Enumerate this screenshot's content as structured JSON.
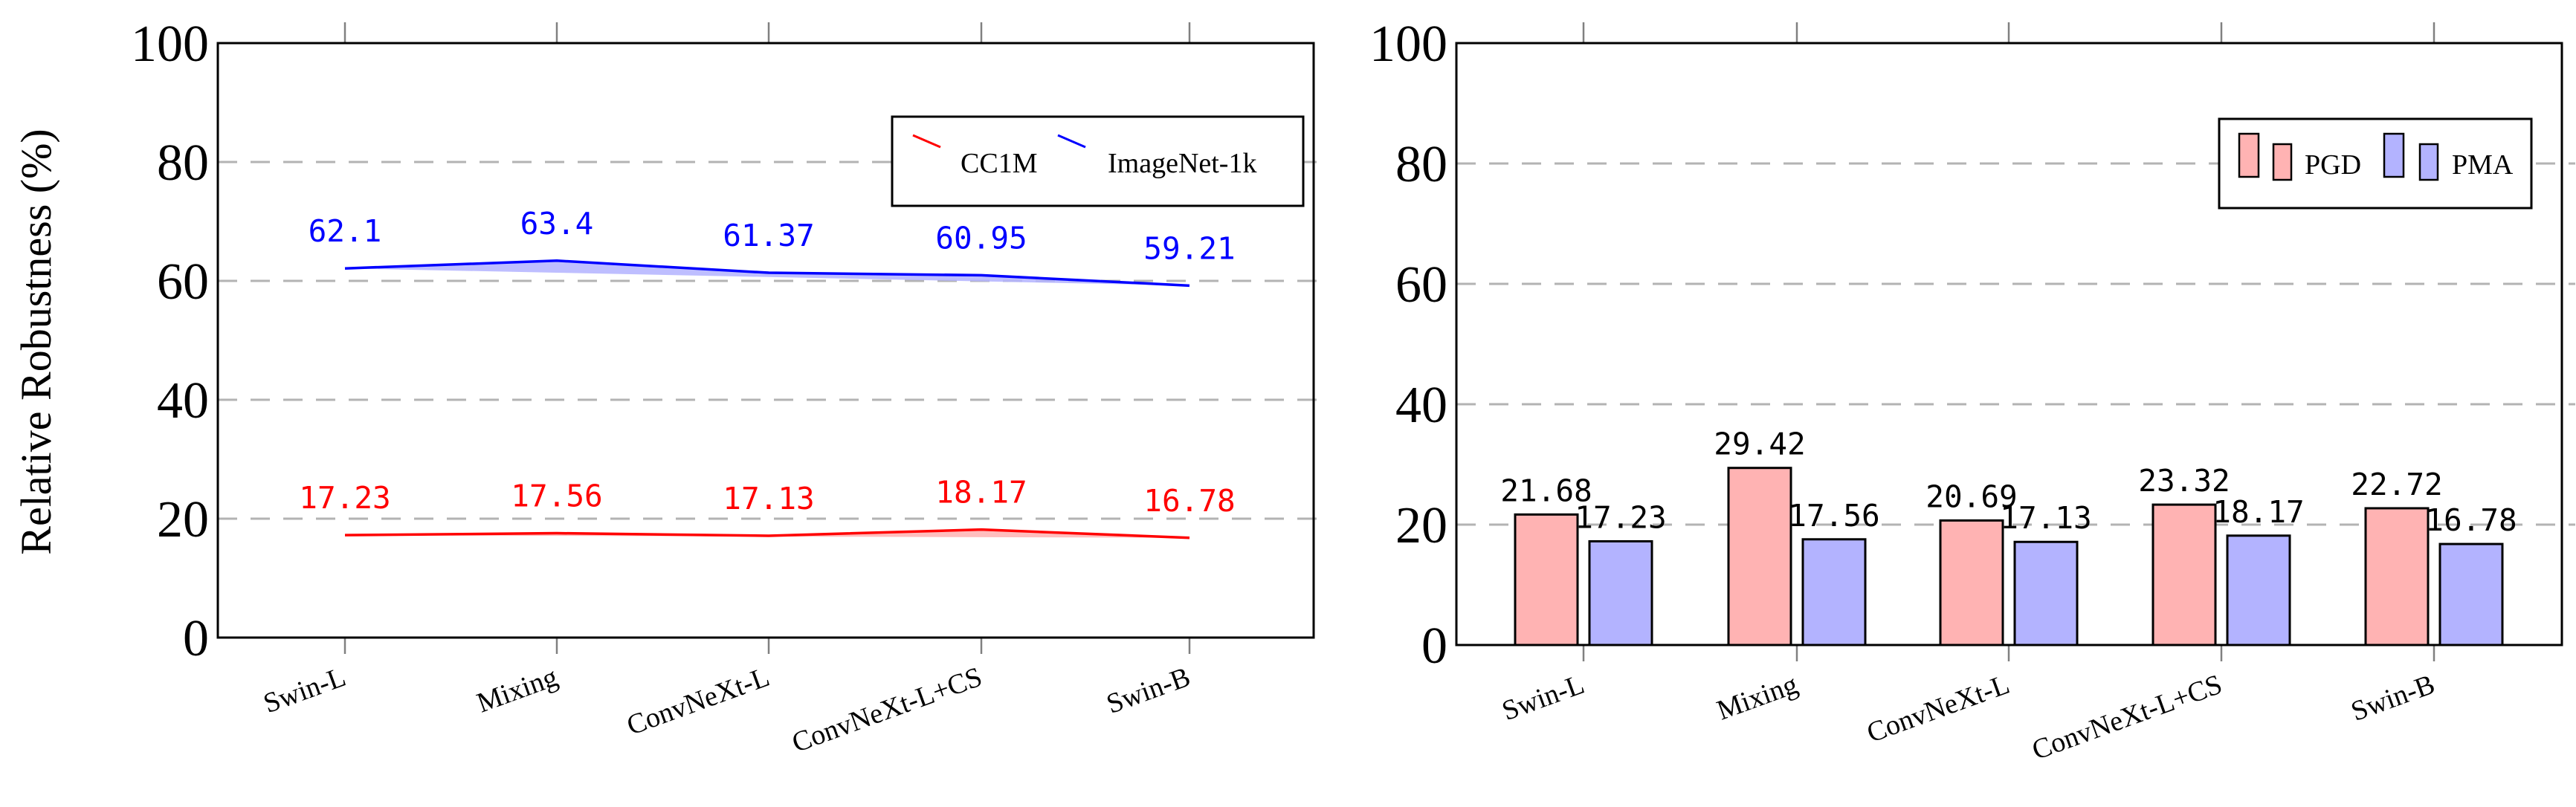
{
  "colors": {
    "cc1m": "#ff0000",
    "imagenet": "#0000ff",
    "cc1m_fill": "#ffb3b3",
    "imagenet_fill": "#b3b3ff",
    "pgd_fill": "#ffb3b3",
    "pma_fill": "#b3b3ff",
    "grid": "#b3b3b3"
  },
  "chart_data": [
    {
      "type": "line",
      "categories": [
        "Swin-L",
        "Mixing",
        "ConvNeXt-L",
        "ConvNeXt-L+CS",
        "Swin-B"
      ],
      "ylabel": "Relative Robustness (%)",
      "ylim": [
        0,
        100
      ],
      "yticks": [
        "0",
        "20",
        "40",
        "60",
        "80",
        "100"
      ],
      "grid": "horizontal dashed",
      "legend_position": "top-right",
      "series": [
        {
          "name": "CC1M",
          "values": [
            17.23,
            17.56,
            17.13,
            18.17,
            16.78
          ],
          "labels": [
            "17.23",
            "17.56",
            "17.13",
            "18.17",
            "16.78"
          ]
        },
        {
          "name": "ImageNet-1k",
          "values": [
            62.1,
            63.4,
            61.37,
            60.95,
            59.21
          ],
          "labels": [
            "62.1",
            "63.4",
            "61.37",
            "60.95",
            "59.21"
          ]
        }
      ]
    },
    {
      "type": "bar",
      "categories": [
        "Swin-L",
        "Mixing",
        "ConvNeXt-L",
        "ConvNeXt-L+CS",
        "Swin-B"
      ],
      "ylim": [
        0,
        100
      ],
      "yticks": [
        "0",
        "20",
        "40",
        "60",
        "80",
        "100"
      ],
      "grid": "horizontal dashed",
      "legend_position": "top-right",
      "series": [
        {
          "name": "PGD",
          "values": [
            21.68,
            29.42,
            20.69,
            23.32,
            22.72
          ],
          "labels": [
            "21.68",
            "29.42",
            "20.69",
            "23.32",
            "22.72"
          ]
        },
        {
          "name": "PMA",
          "values": [
            17.23,
            17.56,
            17.13,
            18.17,
            16.78
          ],
          "labels": [
            "17.23",
            "17.56",
            "17.13",
            "18.17",
            "16.78"
          ]
        }
      ]
    }
  ]
}
